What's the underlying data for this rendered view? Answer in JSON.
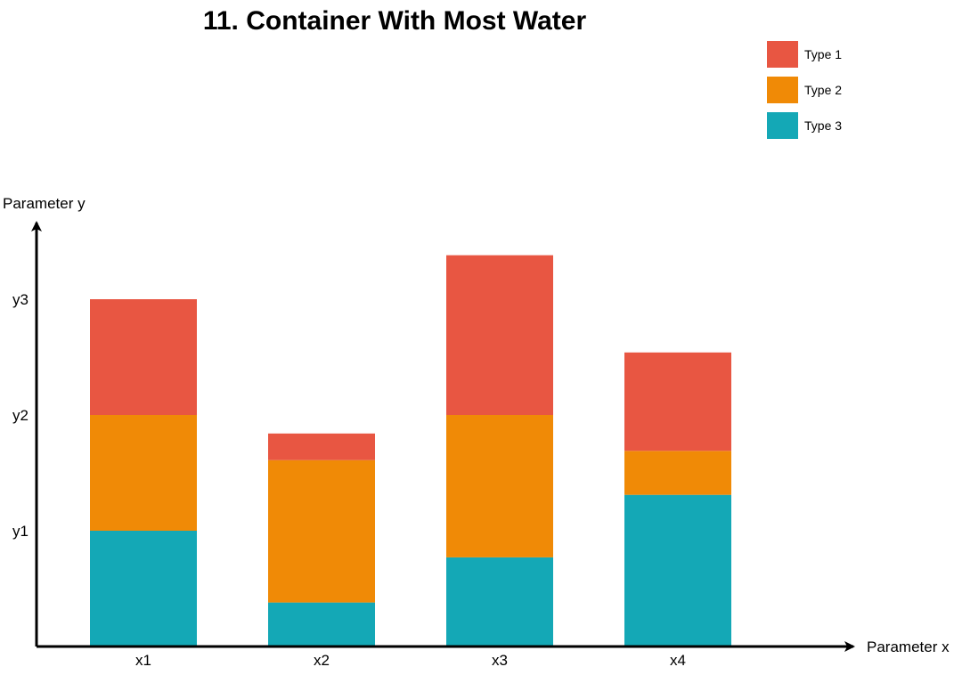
{
  "chart_data": {
    "type": "bar",
    "stacked": true,
    "title": "11. Container With Most Water",
    "xlabel": "Parameter x",
    "ylabel": "Parameter y",
    "categories": [
      "x1",
      "x2",
      "x3",
      "x4"
    ],
    "y_ticks": [
      {
        "label": "y1",
        "value": 1
      },
      {
        "label": "y2",
        "value": 2
      },
      {
        "label": "y3",
        "value": 3
      }
    ],
    "ylim": [
      0,
      3.7
    ],
    "grid": false,
    "legend_position": "top-right",
    "series": [
      {
        "name": "Type 3",
        "color": "#14A8B6",
        "values": [
          1.0,
          0.38,
          0.77,
          1.31
        ]
      },
      {
        "name": "Type 2",
        "color": "#F08A06",
        "values": [
          1.0,
          1.23,
          1.23,
          0.38
        ]
      },
      {
        "name": "Type 1",
        "color": "#E85642",
        "values": [
          1.0,
          0.23,
          1.38,
          0.85
        ]
      }
    ],
    "legend_order": [
      "Type 1",
      "Type 2",
      "Type 3"
    ]
  }
}
